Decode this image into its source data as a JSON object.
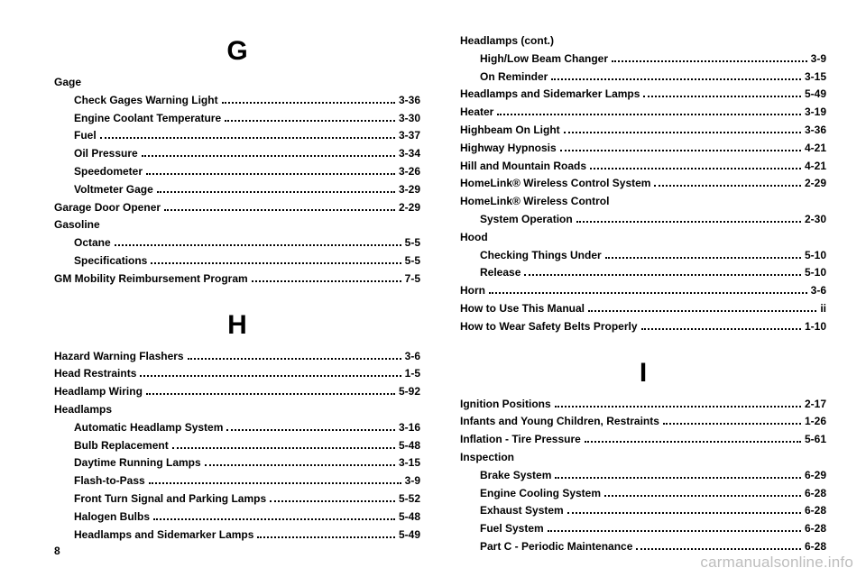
{
  "left": {
    "sectionG": {
      "letter": "G",
      "groups": [
        {
          "heading": "Gage",
          "items": [
            {
              "label": "Check Gages Warning Light",
              "page": "3-36"
            },
            {
              "label": "Engine Coolant Temperature",
              "page": "3-30"
            },
            {
              "label": "Fuel",
              "page": "3-37"
            },
            {
              "label": "Oil Pressure",
              "page": "3-34"
            },
            {
              "label": "Speedometer",
              "page": "3-26"
            },
            {
              "label": "Voltmeter Gage",
              "page": "3-29"
            }
          ]
        },
        {
          "heading": null,
          "items": [
            {
              "label": "Garage Door Opener",
              "page": "2-29"
            }
          ]
        },
        {
          "heading": "Gasoline",
          "items": [
            {
              "label": "Octane",
              "page": "5-5"
            },
            {
              "label": "Specifications",
              "page": "5-5"
            }
          ]
        },
        {
          "heading": null,
          "items": [
            {
              "label": "GM Mobility Reimbursement Program",
              "page": "7-5"
            }
          ]
        }
      ]
    },
    "sectionH": {
      "letter": "H",
      "groups": [
        {
          "heading": null,
          "items": [
            {
              "label": "Hazard Warning Flashers",
              "page": "3-6"
            },
            {
              "label": "Head Restraints",
              "page": "1-5"
            },
            {
              "label": "Headlamp Wiring",
              "page": "5-92"
            }
          ]
        },
        {
          "heading": "Headlamps",
          "items": [
            {
              "label": "Automatic Headlamp System",
              "page": "3-16"
            },
            {
              "label": "Bulb Replacement",
              "page": "5-48"
            },
            {
              "label": "Daytime Running Lamps",
              "page": "3-15"
            },
            {
              "label": "Flash-to-Pass",
              "page": "3-9"
            },
            {
              "label": "Front Turn Signal and Parking Lamps",
              "page": "5-52"
            },
            {
              "label": "Halogen Bulbs",
              "page": "5-48"
            },
            {
              "label": "Headlamps and Sidemarker Lamps",
              "page": "5-49"
            }
          ]
        }
      ]
    }
  },
  "right": {
    "groups1": [
      {
        "heading": "Headlamps (cont.)",
        "items": [
          {
            "label": "High/Low Beam Changer",
            "page": "3-9"
          },
          {
            "label": "On Reminder",
            "page": "3-15"
          }
        ]
      },
      {
        "heading": null,
        "items": [
          {
            "label": "Headlamps and Sidemarker Lamps",
            "page": "5-49"
          },
          {
            "label": "Heater",
            "page": "3-19"
          },
          {
            "label": "Highbeam On Light",
            "page": "3-36"
          },
          {
            "label": "Highway Hypnosis",
            "page": "4-21"
          },
          {
            "label": "Hill and Mountain Roads",
            "page": "4-21"
          },
          {
            "label": "HomeLink® Wireless Control System",
            "page": "2-29"
          }
        ]
      },
      {
        "heading": "HomeLink® Wireless Control",
        "items": [
          {
            "label": "System Operation",
            "page": "2-30"
          }
        ]
      },
      {
        "heading": "Hood",
        "items": [
          {
            "label": "Checking Things Under",
            "page": "5-10"
          },
          {
            "label": "Release",
            "page": "5-10"
          }
        ]
      },
      {
        "heading": null,
        "items": [
          {
            "label": "Horn",
            "page": "3-6"
          },
          {
            "label": "How to Use This Manual",
            "page": "ii"
          },
          {
            "label": "How to Wear Safety Belts Properly",
            "page": "1-10"
          }
        ]
      }
    ],
    "sectionI": {
      "letter": "I",
      "groups": [
        {
          "heading": null,
          "items": [
            {
              "label": "Ignition Positions",
              "page": "2-17"
            },
            {
              "label": "Infants and Young Children, Restraints",
              "page": "1-26"
            },
            {
              "label": "Inflation - Tire Pressure",
              "page": "5-61"
            }
          ]
        },
        {
          "heading": "Inspection",
          "items": [
            {
              "label": "Brake System",
              "page": "6-29"
            },
            {
              "label": "Engine Cooling System",
              "page": "6-28"
            },
            {
              "label": "Exhaust System",
              "page": "6-28"
            },
            {
              "label": "Fuel System",
              "page": "6-28"
            },
            {
              "label": "Part C - Periodic Maintenance",
              "page": "6-28"
            }
          ]
        }
      ]
    }
  },
  "footer": {
    "pageNumber": "8",
    "watermark": "carmanualsonline.info"
  }
}
